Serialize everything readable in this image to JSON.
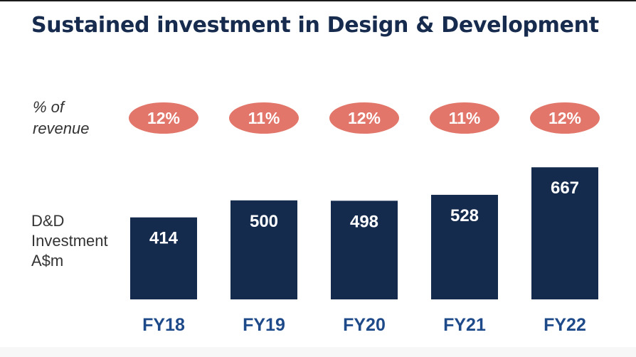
{
  "title": "Sustained investment in Design & Development",
  "row_labels": {
    "pct_of_revenue": [
      "% of",
      "revenue"
    ],
    "investment": [
      "D&D",
      "Investment",
      "A$m"
    ]
  },
  "colors": {
    "bar": "#152b4e",
    "pill": "#e2766a",
    "title": "#162b4d",
    "category": "#1e4a8a"
  },
  "chart_data": {
    "type": "bar",
    "title": "Sustained investment in Design & Development",
    "categories": [
      "FY18",
      "FY19",
      "FY20",
      "FY21",
      "FY22"
    ],
    "series": [
      {
        "name": "D&D Investment A$m",
        "values": [
          414,
          500,
          498,
          528,
          667
        ]
      },
      {
        "name": "% of revenue",
        "values": [
          12,
          11,
          12,
          11,
          12
        ],
        "unit": "%"
      }
    ],
    "value_labels": [
      "414",
      "500",
      "498",
      "528",
      "667"
    ],
    "pct_labels": [
      "12%",
      "11%",
      "12%",
      "11%",
      "12%"
    ],
    "xlabel": "",
    "ylabel": "D&D Investment A$m",
    "ylim": [
      0,
      700
    ],
    "grid": false,
    "legend": "none"
  }
}
